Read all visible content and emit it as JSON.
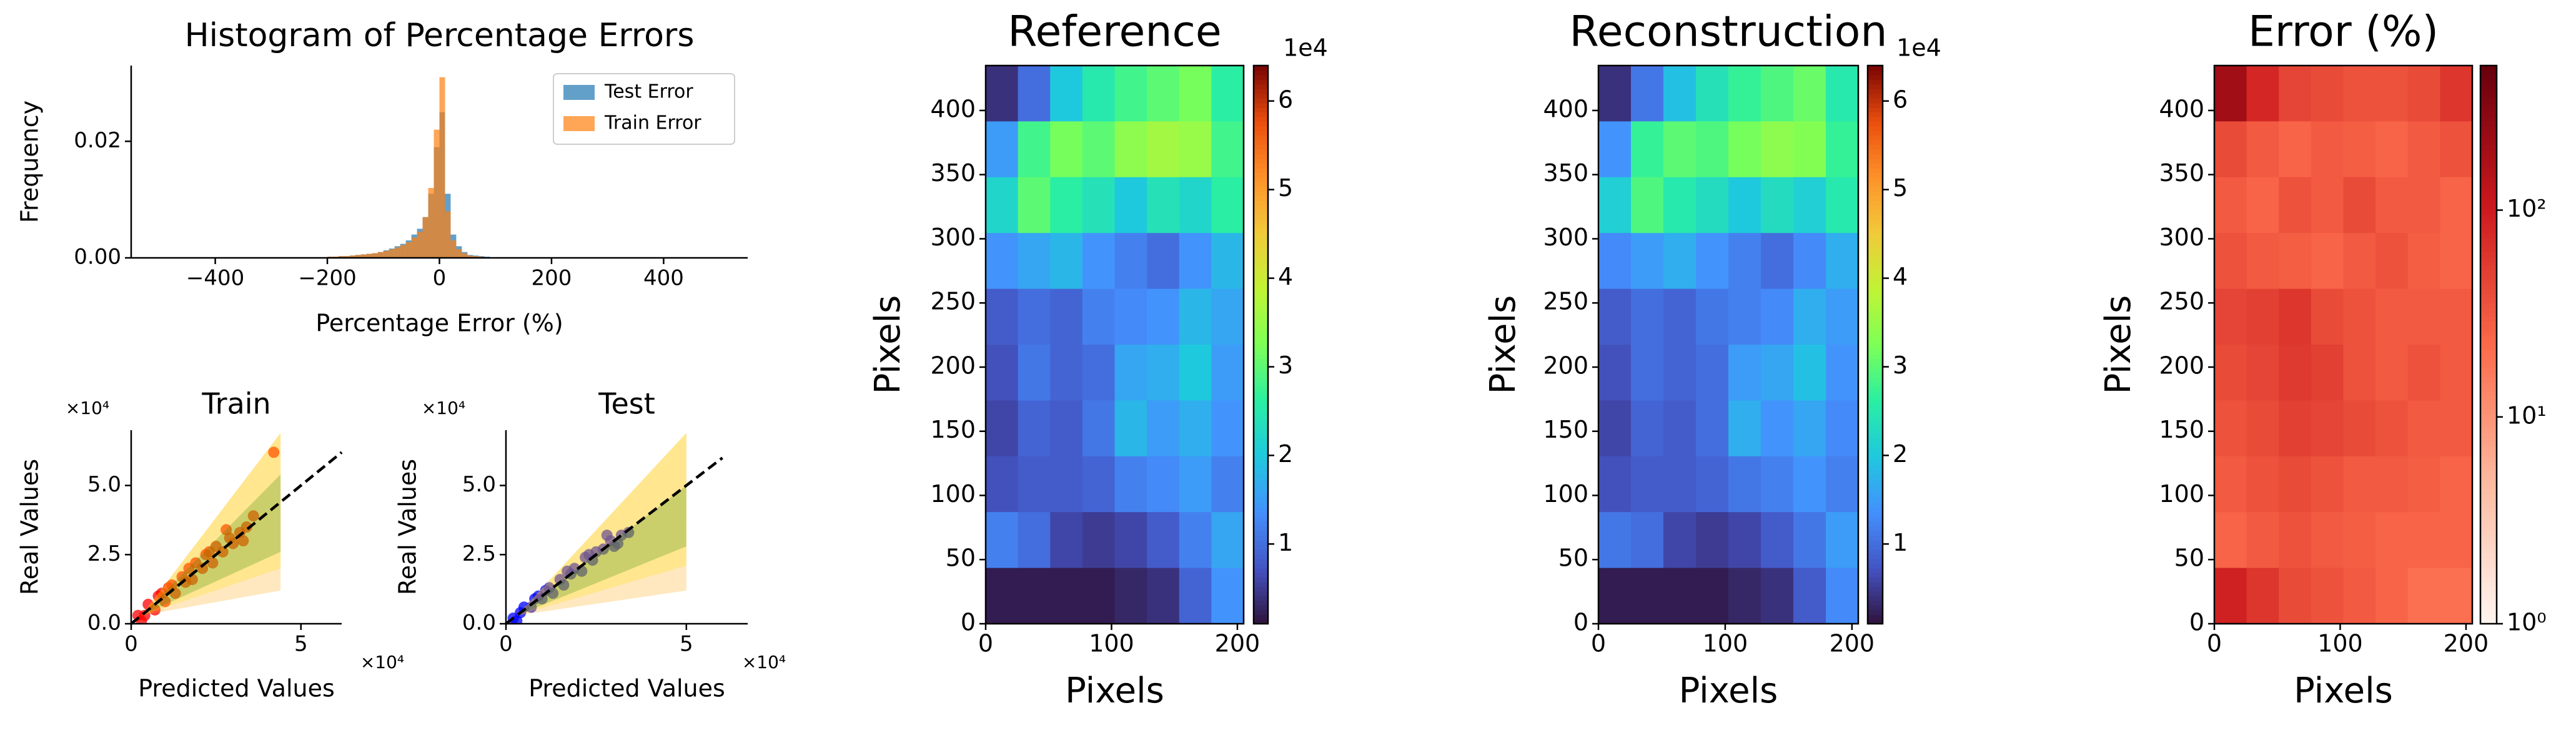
{
  "chart_data": [
    {
      "type": "histogram",
      "title": "Histogram of Percentage Errors",
      "xlabel": "Percentage Error (%)",
      "ylabel": "Frequency",
      "bins": [
        -200,
        -190,
        -180,
        -170,
        -160,
        -150,
        -140,
        -130,
        -120,
        -110,
        -100,
        -90,
        -80,
        -70,
        -60,
        -50,
        -40,
        -30,
        -20,
        -10,
        0,
        10,
        20,
        30,
        40,
        50,
        60,
        70,
        80,
        90,
        100
      ],
      "series": [
        {
          "name": "Test Error",
          "color": "#1f77b4",
          "values": [
            0.0002,
            0.0002,
            0.0003,
            0.0003,
            0.0004,
            0.0005,
            0.0006,
            0.0007,
            0.0008,
            0.001,
            0.0013,
            0.0016,
            0.002,
            0.0024,
            0.003,
            0.004,
            0.005,
            0.007,
            0.011,
            0.019,
            0.025,
            0.011,
            0.004,
            0.002,
            0.001,
            0.0005,
            0.0004,
            0.0003,
            0.0002,
            0.0001
          ]
        },
        {
          "name": "Train Error",
          "color": "#ff7f0e",
          "values": [
            0.0002,
            0.0002,
            0.0003,
            0.0003,
            0.0004,
            0.0005,
            0.0006,
            0.0007,
            0.0008,
            0.001,
            0.0012,
            0.0015,
            0.0018,
            0.0022,
            0.0027,
            0.0035,
            0.0045,
            0.007,
            0.012,
            0.022,
            0.031,
            0.008,
            0.003,
            0.0015,
            0.0008,
            0.0004,
            0.0003,
            0.0002,
            0.0001,
            0.0001
          ]
        }
      ],
      "xlim": [
        -550,
        550
      ],
      "ylim": [
        0,
        0.033
      ],
      "xticks": [
        {
          "value": -400,
          "label": "−400"
        },
        {
          "value": -200,
          "label": "−200"
        },
        0,
        200,
        400
      ],
      "yticks": [
        {
          "value": 0,
          "label": "0.00"
        },
        {
          "value": 0.02,
          "label": "0.02"
        }
      ],
      "legend": "upper right"
    },
    {
      "type": "scatter",
      "title": "Train",
      "xlabel": "Predicted Values",
      "ylabel": "Real Values",
      "x_offset": "×10⁴",
      "y_offset": "×10⁴",
      "xlim": [
        0,
        6.2
      ],
      "ylim": [
        0,
        7.0
      ],
      "xticks": [
        0,
        5
      ],
      "yticks": [
        {
          "value": 0,
          "label": "0.0"
        },
        {
          "value": 2.5,
          "label": "2.5"
        },
        {
          "value": 5,
          "label": "5.0"
        }
      ],
      "bands": [
        {
          "color": "#ffa500",
          "x": [
            0.3,
            4.4
          ],
          "lower": [
            0.3,
            1.2
          ],
          "upper": [
            0.3,
            6.9
          ]
        },
        {
          "color": "#ffe000",
          "x": [
            0.3,
            4.4
          ],
          "lower": [
            0.3,
            2.0
          ],
          "upper": [
            0.3,
            6.9
          ]
        },
        {
          "color": "#2e8b00",
          "x": [
            0.3,
            4.4
          ],
          "lower": [
            0.3,
            2.6
          ],
          "upper": [
            0.3,
            5.4
          ]
        }
      ],
      "reference_line": {
        "x": [
          0,
          6.2
        ],
        "values": [
          0,
          6.2
        ]
      },
      "series": [
        {
          "color": "#ff0000",
          "x": [
            0.2,
            0.4,
            0.5,
            0.7,
            0.9,
            1.0,
            1.2,
            1.3,
            1.5,
            1.6,
            1.8,
            1.9,
            2.1,
            2.2,
            2.4,
            2.5,
            2.7,
            2.9,
            3.0,
            3.2,
            3.4,
            3.6,
            0.3,
            0.8,
            1.1,
            1.7,
            2.3,
            2.8,
            3.3,
            4.2
          ],
          "values": [
            0.3,
            0.3,
            0.7,
            0.5,
            1.1,
            0.8,
            1.4,
            1.1,
            1.7,
            1.5,
            1.6,
            2.2,
            2.0,
            2.5,
            2.2,
            2.8,
            2.6,
            3.1,
            2.9,
            3.3,
            3.5,
            3.9,
            0.1,
            1.0,
            1.3,
            2.0,
            2.6,
            3.4,
            3.0,
            6.2
          ]
        }
      ]
    },
    {
      "type": "scatter",
      "title": "Test",
      "xlabel": "Predicted Values",
      "ylabel": "Real Values",
      "x_offset": "×10⁴",
      "y_offset": "×10⁴",
      "xlim": [
        0,
        6.7
      ],
      "ylim": [
        0,
        7.0
      ],
      "xticks": [
        0,
        5
      ],
      "yticks": [
        {
          "value": 0,
          "label": "0.0"
        },
        {
          "value": 2.5,
          "label": "2.5"
        },
        {
          "value": 5,
          "label": "5.0"
        }
      ],
      "bands": [
        {
          "color": "#ffa500",
          "x": [
            0.3,
            5.0
          ],
          "lower": [
            0.3,
            1.2
          ],
          "upper": [
            0.3,
            6.9
          ]
        },
        {
          "color": "#ffe000",
          "x": [
            0.3,
            5.0
          ],
          "lower": [
            0.3,
            2.1
          ],
          "upper": [
            0.3,
            6.9
          ]
        },
        {
          "color": "#2e8b00",
          "x": [
            0.3,
            5.0
          ],
          "lower": [
            0.3,
            2.8
          ],
          "upper": [
            0.3,
            5.0
          ]
        }
      ],
      "reference_line": {
        "x": [
          0,
          6.0
        ],
        "values": [
          0,
          6.0
        ]
      },
      "series": [
        {
          "color": "#0000ff",
          "x": [
            0.2,
            0.4,
            0.5,
            0.7,
            0.9,
            1.0,
            1.2,
            1.3,
            1.5,
            1.6,
            1.8,
            1.9,
            2.1,
            2.2,
            2.4,
            2.5,
            2.7,
            2.9,
            3.0,
            3.2,
            3.4,
            0.3,
            0.8,
            1.1,
            1.7,
            2.3,
            2.8,
            3.1
          ],
          "values": [
            0.2,
            0.4,
            0.6,
            0.6,
            1.0,
            0.9,
            1.3,
            1.1,
            1.6,
            1.4,
            1.8,
            2.0,
            1.9,
            2.4,
            2.3,
            2.6,
            2.7,
            3.0,
            2.8,
            3.2,
            3.3,
            0.1,
            0.9,
            1.2,
            1.9,
            2.5,
            3.2,
            2.9
          ]
        }
      ]
    },
    {
      "type": "heatmap",
      "title": "Reference",
      "xlabel": "Pixels",
      "ylabel": "Pixels",
      "xlim": [
        0,
        205
      ],
      "ylim": [
        0,
        435
      ],
      "xticks": [
        0,
        100,
        200
      ],
      "yticks": [
        0,
        50,
        100,
        150,
        200,
        250,
        300,
        350,
        400
      ],
      "colormap": "turbo",
      "clim": [
        0.1,
        6.4
      ],
      "cticks": [
        1,
        2,
        3,
        4,
        5,
        6
      ],
      "colorbar_offset": "1e4",
      "z": [
        [
          0.4,
          1.0,
          2.0,
          2.5,
          2.8,
          3.0,
          3.2,
          2.6
        ],
        [
          1.5,
          2.8,
          3.2,
          3.0,
          3.4,
          3.6,
          3.5,
          2.8
        ],
        [
          2.2,
          3.0,
          2.6,
          2.4,
          2.0,
          2.4,
          2.2,
          2.6
        ],
        [
          1.4,
          1.6,
          1.8,
          1.4,
          1.2,
          1.0,
          1.4,
          1.8
        ],
        [
          0.8,
          1.0,
          0.9,
          1.2,
          1.3,
          1.4,
          1.8,
          1.6
        ],
        [
          0.7,
          1.1,
          0.9,
          1.0,
          1.6,
          1.7,
          2.0,
          1.5
        ],
        [
          0.6,
          0.9,
          0.8,
          1.1,
          1.8,
          1.5,
          1.7,
          1.4
        ],
        [
          0.7,
          0.8,
          0.8,
          0.9,
          1.2,
          1.3,
          1.5,
          1.2
        ],
        [
          1.2,
          1.0,
          0.6,
          0.5,
          0.6,
          0.8,
          1.2,
          1.6
        ],
        [
          0.2,
          0.2,
          0.2,
          0.2,
          0.3,
          0.4,
          0.9,
          1.4
        ]
      ]
    },
    {
      "type": "heatmap",
      "title": "Reconstruction",
      "xlabel": "Pixels",
      "ylabel": "Pixels",
      "xlim": [
        0,
        205
      ],
      "ylim": [
        0,
        435
      ],
      "xticks": [
        0,
        100,
        200
      ],
      "yticks": [
        0,
        50,
        100,
        150,
        200,
        250,
        300,
        350,
        400
      ],
      "colormap": "turbo",
      "clim": [
        0.1,
        6.4
      ],
      "cticks": [
        1,
        2,
        3,
        4,
        5,
        6
      ],
      "colorbar_offset": "1e4",
      "z": [
        [
          0.4,
          1.1,
          1.9,
          2.4,
          2.7,
          2.9,
          3.1,
          2.5
        ],
        [
          1.4,
          2.7,
          3.0,
          2.9,
          3.2,
          3.4,
          3.3,
          2.7
        ],
        [
          2.1,
          2.9,
          2.5,
          2.3,
          2.0,
          2.3,
          2.1,
          2.5
        ],
        [
          1.3,
          1.5,
          1.7,
          1.4,
          1.2,
          1.0,
          1.3,
          1.7
        ],
        [
          0.8,
          1.0,
          0.9,
          1.1,
          1.2,
          1.3,
          1.7,
          1.5
        ],
        [
          0.7,
          1.0,
          0.9,
          1.0,
          1.5,
          1.6,
          1.9,
          1.4
        ],
        [
          0.6,
          0.9,
          0.8,
          1.0,
          1.7,
          1.4,
          1.6,
          1.3
        ],
        [
          0.7,
          0.8,
          0.8,
          0.9,
          1.1,
          1.2,
          1.4,
          1.2
        ],
        [
          1.1,
          1.0,
          0.6,
          0.5,
          0.6,
          0.8,
          1.1,
          1.5
        ],
        [
          0.2,
          0.2,
          0.2,
          0.2,
          0.3,
          0.4,
          0.8,
          1.3
        ]
      ]
    },
    {
      "type": "heatmap",
      "title": "Error (%)",
      "xlabel": "Pixels",
      "ylabel": "Pixels",
      "xlim": [
        0,
        205
      ],
      "ylim": [
        0,
        435
      ],
      "xticks": [
        0,
        100,
        200
      ],
      "yticks": [
        0,
        50,
        100,
        150,
        200,
        250,
        300,
        350,
        400
      ],
      "colormap": "Reds",
      "log_color": true,
      "clim": [
        1,
        500
      ],
      "cticks": [
        {
          "value": 1,
          "label": "10⁰"
        },
        {
          "value": 10,
          "label": "10¹"
        },
        {
          "value": 100,
          "label": "10²"
        }
      ],
      "z": [
        [
          200,
          80,
          45,
          40,
          35,
          35,
          40,
          60
        ],
        [
          40,
          30,
          25,
          30,
          28,
          25,
          30,
          35
        ],
        [
          30,
          25,
          35,
          30,
          40,
          30,
          30,
          25
        ],
        [
          35,
          30,
          28,
          25,
          30,
          35,
          28,
          25
        ],
        [
          45,
          50,
          60,
          40,
          35,
          30,
          30,
          30
        ],
        [
          40,
          45,
          55,
          50,
          35,
          30,
          35,
          30
        ],
        [
          35,
          40,
          50,
          45,
          40,
          35,
          30,
          30
        ],
        [
          30,
          35,
          40,
          35,
          30,
          30,
          28,
          25
        ],
        [
          25,
          30,
          35,
          30,
          28,
          25,
          25,
          25
        ],
        [
          90,
          60,
          40,
          35,
          30,
          25,
          20,
          20
        ]
      ]
    }
  ]
}
